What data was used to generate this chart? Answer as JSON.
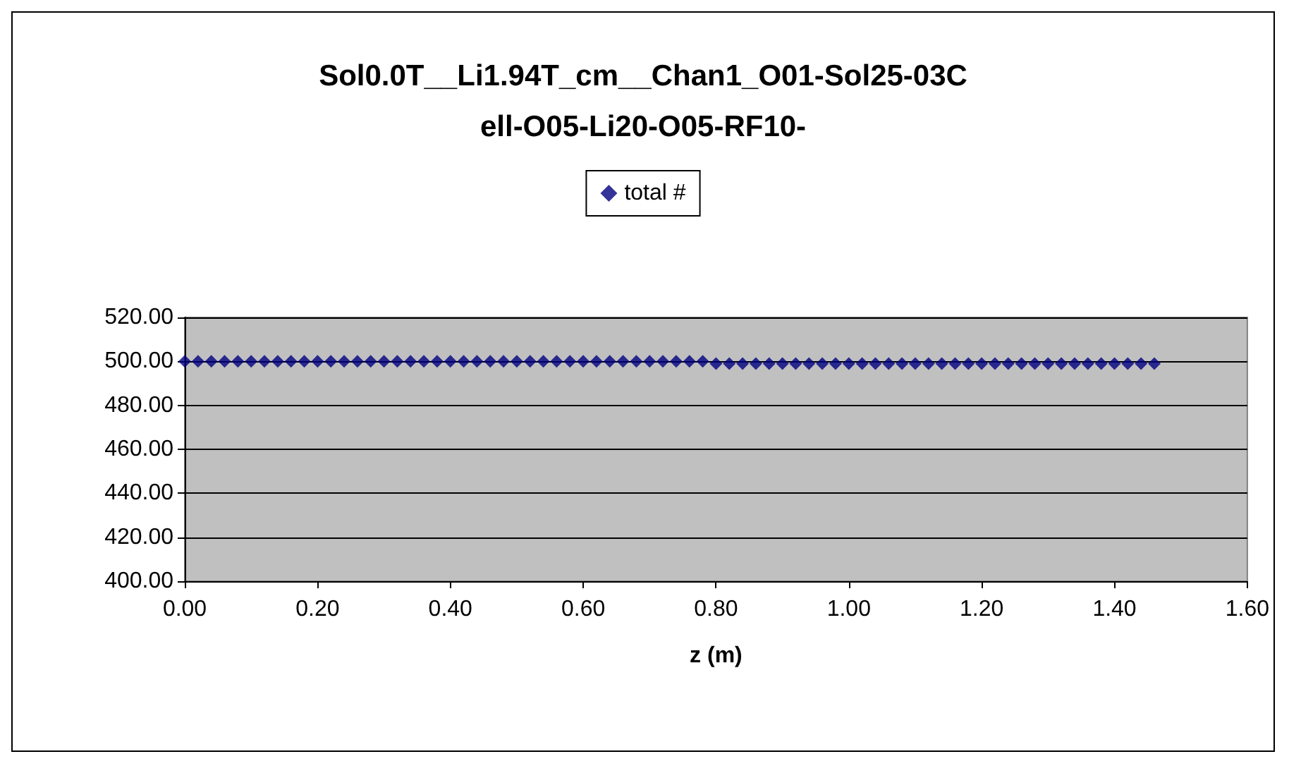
{
  "chart_data": {
    "type": "scatter",
    "title": "Sol0.0T__Li1.94T_cm__Chan1_O01-Sol25-03Cell-O05-Li20-O05-RF10-",
    "xlabel": "z (m)",
    "x": [
      0,
      0.02,
      0.04,
      0.06,
      0.08,
      0.1,
      0.12,
      0.14,
      0.16,
      0.18,
      0.2,
      0.22,
      0.24,
      0.26,
      0.28,
      0.3,
      0.32,
      0.34,
      0.36,
      0.38,
      0.4,
      0.42,
      0.44,
      0.46,
      0.48,
      0.5,
      0.52,
      0.54,
      0.56,
      0.58,
      0.6,
      0.62,
      0.64,
      0.66,
      0.68,
      0.7,
      0.72,
      0.74,
      0.76,
      0.78,
      0.8,
      0.82,
      0.84,
      0.86,
      0.88,
      0.9,
      0.92,
      0.94,
      0.96,
      0.98,
      1,
      1.02,
      1.04,
      1.06,
      1.08,
      1.1,
      1.12,
      1.14,
      1.16,
      1.18,
      1.2,
      1.22,
      1.24,
      1.26,
      1.28,
      1.3,
      1.32,
      1.34,
      1.36,
      1.38,
      1.4,
      1.42,
      1.44,
      1.46
    ],
    "series": [
      {
        "name": "total #",
        "color": "#000080",
        "values": [
          500,
          500,
          500,
          500,
          500,
          500,
          500,
          500,
          500,
          500,
          500,
          500,
          500,
          500,
          500,
          500,
          500,
          500,
          500,
          500,
          500,
          500,
          500,
          500,
          500,
          500,
          500,
          500,
          500,
          500,
          500,
          500,
          500,
          500,
          500,
          500,
          500,
          500,
          500,
          500,
          499,
          499,
          499,
          499,
          499,
          499,
          499,
          499,
          499,
          499,
          499,
          499,
          499,
          499,
          499,
          499,
          499,
          499,
          499,
          499,
          499,
          499,
          499,
          499,
          499,
          499,
          499,
          499,
          499,
          499,
          499,
          499,
          499,
          499
        ]
      }
    ],
    "xlim": [
      0,
      1.6
    ],
    "xticks": [
      {
        "value": 0,
        "label": "0.00"
      },
      {
        "value": 0.2,
        "label": "0.20"
      },
      {
        "value": 0.4,
        "label": "0.40"
      },
      {
        "value": 0.6,
        "label": "0.60"
      },
      {
        "value": 0.8,
        "label": "0.80"
      },
      {
        "value": 1,
        "label": "1.00"
      },
      {
        "value": 1.2,
        "label": "1.20"
      },
      {
        "value": 1.4,
        "label": "1.40"
      },
      {
        "value": 1.6,
        "label": "1.60"
      }
    ],
    "ylim": [
      400,
      520
    ],
    "yticks": [
      {
        "value": 400,
        "label": "400.00"
      },
      {
        "value": 420,
        "label": "420.00"
      },
      {
        "value": 440,
        "label": "440.00"
      },
      {
        "value": 460,
        "label": "460.00"
      },
      {
        "value": 480,
        "label": "480.00"
      },
      {
        "value": 500,
        "label": "500.00"
      },
      {
        "value": 520,
        "label": "520.00"
      }
    ],
    "grid": "y",
    "legend": "top",
    "marker": "diamond"
  }
}
